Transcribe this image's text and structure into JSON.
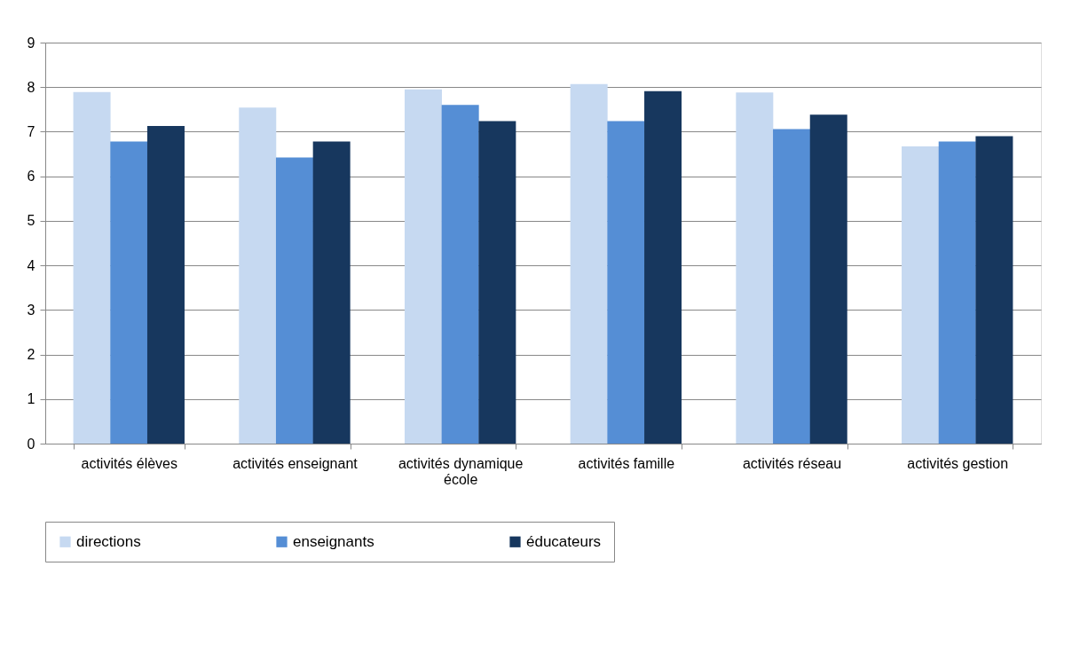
{
  "chart_data": {
    "type": "bar",
    "categories": [
      "activités élèves",
      "activités enseignant",
      "activités dynamique école",
      "activités famille",
      "activités réseau",
      "activités gestion"
    ],
    "series": [
      {
        "name": "directions",
        "color": "#c6d9f1",
        "values": [
          7.89,
          7.54,
          7.95,
          8.07,
          7.88,
          6.67
        ]
      },
      {
        "name": "enseignants",
        "color": "#558ed5",
        "values": [
          6.78,
          6.42,
          7.6,
          7.24,
          7.06,
          6.78
        ]
      },
      {
        "name": "éducateurs",
        "color": "#17375e",
        "values": [
          7.13,
          6.78,
          7.24,
          7.91,
          7.38,
          6.9
        ]
      }
    ],
    "ylim": [
      0,
      9
    ],
    "yticks": [
      0,
      1,
      2,
      3,
      4,
      5,
      6,
      7,
      8,
      9
    ],
    "grid": "y",
    "legend": "bottom"
  }
}
